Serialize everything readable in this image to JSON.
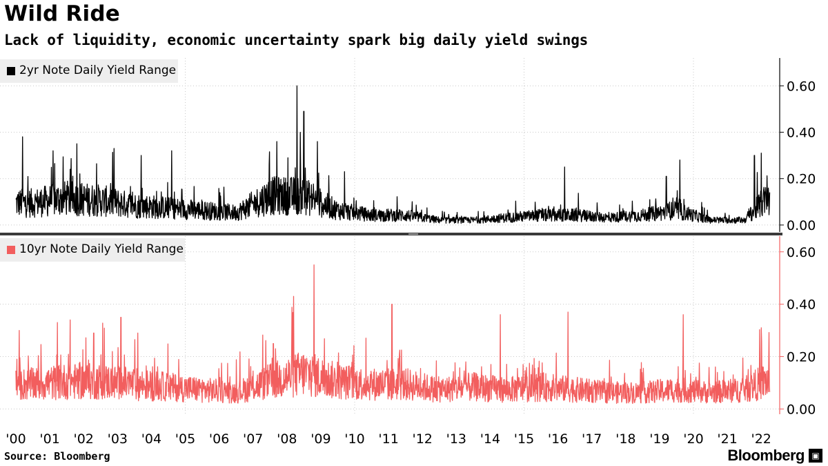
{
  "title": "Wild Ride",
  "subtitle": "Lack of liquidity, economic uncertainty spark big daily yield swings",
  "source": "Source: Bloomberg",
  "brand": "Bloomberg",
  "brand_badge": "▣",
  "colors": {
    "two_year": "#000000",
    "ten_year": "#f25e5e"
  },
  "chart_data": [
    {
      "type": "line",
      "series": [
        {
          "name": "2yr Note Daily Yield Range",
          "color": "#000000"
        }
      ],
      "ylim": [
        -0.03,
        0.72
      ],
      "y_ticks": [
        "0.00",
        "0.20",
        "0.40",
        "0.60"
      ],
      "y_tick_values": [
        0.0,
        0.2,
        0.4,
        0.6
      ],
      "grid": true,
      "legend": "top-left",
      "x_range": [
        2000.0,
        2022.25
      ],
      "yearly_median": {
        "x": [
          2000.5,
          2001.5,
          2002.5,
          2003.5,
          2004.5,
          2005.5,
          2006.5,
          2007.5,
          2008.5,
          2009.5,
          2010.5,
          2011.5,
          2012.5,
          2013.5,
          2014.5,
          2015.5,
          2016.5,
          2017.5,
          2018.5,
          2019.5,
          2020.5,
          2021.5,
          2022.1
        ],
        "y": [
          0.09,
          0.11,
          0.1,
          0.08,
          0.07,
          0.06,
          0.05,
          0.12,
          0.12,
          0.06,
          0.04,
          0.04,
          0.02,
          0.02,
          0.03,
          0.04,
          0.04,
          0.03,
          0.04,
          0.06,
          0.02,
          0.02,
          0.1
        ]
      },
      "peaks": {
        "x": [
          2000.2,
          2001.1,
          2001.8,
          2002.9,
          2003.7,
          2004.6,
          2007.7,
          2008.3,
          2008.5,
          2008.9,
          2009.7,
          2016.2,
          2019.2,
          2019.6,
          2021.8,
          2022.0
        ],
        "y": [
          0.38,
          0.32,
          0.35,
          0.33,
          0.3,
          0.32,
          0.36,
          0.6,
          0.49,
          0.36,
          0.23,
          0.25,
          0.21,
          0.28,
          0.3,
          0.31
        ]
      }
    },
    {
      "type": "line",
      "series": [
        {
          "name": "10yr Note Daily Yield Range",
          "color": "#f25e5e"
        }
      ],
      "ylim": [
        -0.02,
        0.66
      ],
      "y_ticks": [
        "0.00",
        "0.20",
        "0.40",
        "0.60"
      ],
      "y_tick_values": [
        0.0,
        0.2,
        0.4,
        0.6
      ],
      "grid": true,
      "legend": "top-left",
      "x_range": [
        2000.0,
        2022.25
      ],
      "yearly_median": {
        "x": [
          2000.5,
          2001.5,
          2002.5,
          2003.5,
          2004.5,
          2005.5,
          2006.5,
          2007.5,
          2008.5,
          2009.5,
          2010.5,
          2011.5,
          2012.5,
          2013.5,
          2014.5,
          2015.5,
          2016.5,
          2017.5,
          2018.5,
          2019.5,
          2020.5,
          2021.5,
          2022.1
        ],
        "y": [
          0.09,
          0.1,
          0.1,
          0.09,
          0.08,
          0.07,
          0.06,
          0.1,
          0.13,
          0.1,
          0.09,
          0.09,
          0.07,
          0.08,
          0.07,
          0.08,
          0.07,
          0.06,
          0.06,
          0.07,
          0.06,
          0.07,
          0.1
        ]
      },
      "peaks": {
        "x": [
          2000.1,
          2001.6,
          2002.3,
          2003.1,
          2003.6,
          2007.6,
          2008.2,
          2008.8,
          2011.1,
          2014.3,
          2016.3,
          2019.7,
          2022.0
        ],
        "y": [
          0.3,
          0.34,
          0.29,
          0.35,
          0.29,
          0.25,
          0.43,
          0.55,
          0.4,
          0.36,
          0.37,
          0.36,
          0.31
        ]
      }
    }
  ],
  "x_axis": {
    "labels": [
      "'00",
      "'01",
      "'02",
      "'03",
      "'04",
      "'05",
      "'06",
      "'07",
      "'08",
      "'09",
      "'10",
      "'11",
      "'12",
      "'13",
      "'14",
      "'15",
      "'16",
      "'17",
      "'18",
      "'19",
      "'20",
      "'21",
      "'22"
    ],
    "years": [
      2000,
      2001,
      2002,
      2003,
      2004,
      2005,
      2006,
      2007,
      2008,
      2009,
      2010,
      2011,
      2012,
      2013,
      2014,
      2015,
      2016,
      2017,
      2018,
      2019,
      2020,
      2021,
      2022
    ],
    "gridline_years": [
      2005,
      2010,
      2015,
      2020
    ]
  }
}
